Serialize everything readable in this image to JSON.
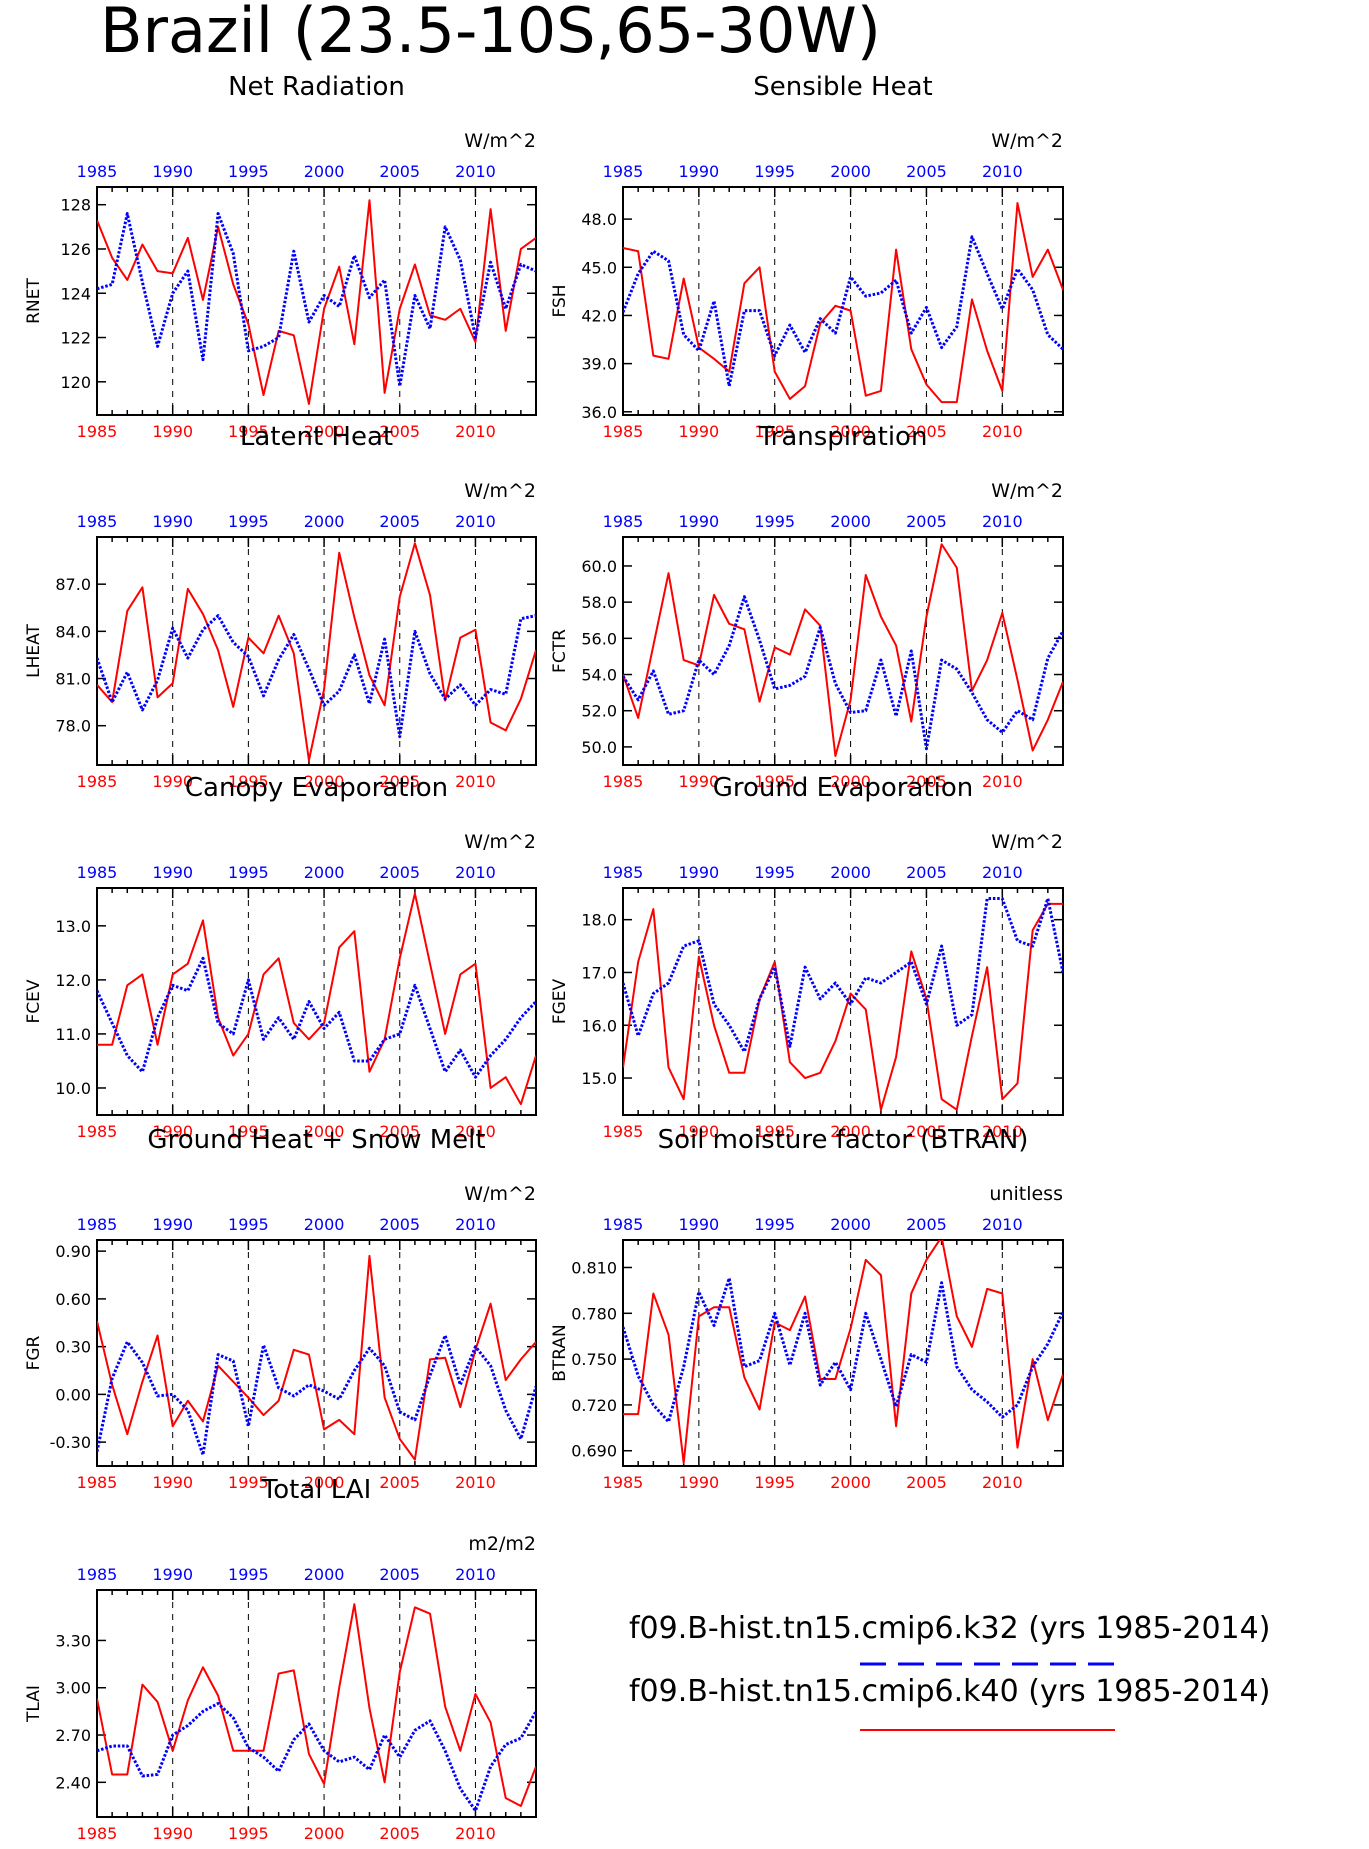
{
  "title": "Brazil (23.5-10S,65-30W)",
  "colors": {
    "k32": "#0000ff",
    "k40": "#ff0000",
    "axis": "#000000"
  },
  "legend": [
    {
      "label": "f09.B-hist.tn15.cmip6.k32 (yrs 1985-2014)",
      "color": "#0000ff",
      "style": "dashed-dotted"
    },
    {
      "label": "f09.B-hist.tn15.cmip6.k40 (yrs 1985-2014)",
      "color": "#ff0000",
      "style": "solid"
    }
  ],
  "chart_data": [
    {
      "type": "line",
      "title": "Net Radiation",
      "ylabel": "RNET",
      "units": "W/m^2",
      "xlim": [
        1985,
        2014
      ],
      "ylim": [
        118.5,
        128.8
      ],
      "yticks": [
        "120",
        "122",
        "124",
        "126",
        "128"
      ],
      "x_ticks_top": [
        "1985",
        "1990",
        "1995",
        "2000",
        "2005",
        "2010"
      ],
      "x_ticks_bottom": [
        "1985",
        "1990",
        "1995",
        "2000",
        "2005",
        "2010"
      ],
      "series": [
        {
          "name": "f09.B-hist.tn15.cmip6.k32",
          "values": [
            124.2,
            124.4,
            127.6,
            124.5,
            121.6,
            124.0,
            125.0,
            121.0,
            127.6,
            125.8,
            121.4,
            121.6,
            122.0,
            125.9,
            122.7,
            123.9,
            123.4,
            125.7,
            123.8,
            124.6,
            119.8,
            123.9,
            122.4,
            127.0,
            125.5,
            122.0,
            125.4,
            123.3,
            125.3,
            125.0
          ]
        },
        {
          "name": "f09.B-hist.tn15.cmip6.k40",
          "values": [
            127.3,
            125.6,
            124.6,
            126.2,
            125.0,
            124.9,
            126.5,
            123.7,
            127.0,
            124.4,
            122.6,
            119.4,
            122.3,
            122.1,
            119.0,
            123.3,
            125.2,
            121.7,
            128.2,
            119.5,
            123.3,
            125.3,
            123.0,
            122.8,
            123.3,
            121.8,
            127.8,
            122.3,
            126.0,
            126.5
          ]
        }
      ]
    },
    {
      "type": "line",
      "title": "Sensible Heat",
      "ylabel": "FSH",
      "units": "W/m^2",
      "xlim": [
        1985,
        2014
      ],
      "ylim": [
        35.8,
        50.0
      ],
      "yticks": [
        "36.0",
        "39.0",
        "42.0",
        "45.0",
        "48.0"
      ],
      "x_ticks_top": [
        "1985",
        "1990",
        "1995",
        "2000",
        "2005",
        "2010"
      ],
      "x_ticks_bottom": [
        "1985",
        "1990",
        "1995",
        "2000",
        "2005",
        "2010"
      ],
      "series": [
        {
          "name": "f09.B-hist.tn15.cmip6.k32",
          "values": [
            42.2,
            44.6,
            46.0,
            45.4,
            40.8,
            39.8,
            42.9,
            37.6,
            42.3,
            42.3,
            39.5,
            41.4,
            39.7,
            41.8,
            40.9,
            44.4,
            43.2,
            43.4,
            44.2,
            40.9,
            42.5,
            40.0,
            41.3,
            46.9,
            44.6,
            42.4,
            44.9,
            43.6,
            40.8,
            39.9
          ]
        },
        {
          "name": "f09.B-hist.tn15.cmip6.k40",
          "values": [
            46.2,
            46.0,
            39.5,
            39.3,
            44.3,
            40.0,
            39.3,
            38.5,
            44.0,
            45.0,
            38.5,
            36.8,
            37.6,
            41.5,
            42.6,
            42.3,
            37.0,
            37.3,
            46.1,
            39.9,
            37.7,
            36.6,
            36.6,
            43.0,
            39.8,
            37.3,
            49.0,
            44.4,
            46.1,
            43.6
          ]
        }
      ]
    },
    {
      "type": "line",
      "title": "Latent Heat",
      "ylabel": "LHEAT",
      "units": "W/m^2",
      "xlim": [
        1985,
        2014
      ],
      "ylim": [
        75.5,
        90.0
      ],
      "yticks": [
        "78.0",
        "81.0",
        "84.0",
        "87.0"
      ],
      "x_ticks_top": [
        "1985",
        "1990",
        "1995",
        "2000",
        "2005",
        "2010"
      ],
      "x_ticks_bottom": [
        "1985",
        "1990",
        "1995",
        "2000",
        "2005",
        "2010"
      ],
      "series": [
        {
          "name": "f09.B-hist.tn15.cmip6.k32",
          "values": [
            82.3,
            79.5,
            81.4,
            79.0,
            80.9,
            84.2,
            82.3,
            84.1,
            85.0,
            83.3,
            82.4,
            79.9,
            82.2,
            83.8,
            81.6,
            79.3,
            80.2,
            82.5,
            79.4,
            83.5,
            77.3,
            84.0,
            81.3,
            79.7,
            80.6,
            79.3,
            80.3,
            80.0,
            84.8,
            85.0
          ]
        },
        {
          "name": "f09.B-hist.tn15.cmip6.k40",
          "values": [
            80.6,
            79.5,
            85.3,
            86.8,
            79.8,
            80.7,
            86.7,
            85.1,
            82.8,
            79.2,
            83.6,
            82.6,
            85.0,
            82.6,
            75.8,
            80.3,
            89.0,
            84.9,
            81.2,
            79.3,
            86.2,
            89.6,
            86.3,
            79.6,
            83.6,
            84.1,
            78.2,
            77.7,
            79.7,
            82.8
          ]
        }
      ]
    },
    {
      "type": "line",
      "title": "Transpiration",
      "ylabel": "FCTR",
      "units": "W/m^2",
      "xlim": [
        1985,
        2014
      ],
      "ylim": [
        49.0,
        61.6
      ],
      "yticks": [
        "50.0",
        "52.0",
        "54.0",
        "56.0",
        "58.0",
        "60.0"
      ],
      "x_ticks_top": [
        "1985",
        "1990",
        "1995",
        "2000",
        "2005",
        "2010"
      ],
      "x_ticks_bottom": [
        "1985",
        "1990",
        "1995",
        "2000",
        "2005",
        "2010"
      ],
      "series": [
        {
          "name": "f09.B-hist.tn15.cmip6.k32",
          "values": [
            53.9,
            52.6,
            54.2,
            51.8,
            52.0,
            54.8,
            54.0,
            55.6,
            58.3,
            55.9,
            53.2,
            53.4,
            53.9,
            56.6,
            53.5,
            51.9,
            52.0,
            54.8,
            51.7,
            55.3,
            49.9,
            54.8,
            54.3,
            53.0,
            51.5,
            50.8,
            52.0,
            51.5,
            54.9,
            56.4
          ]
        },
        {
          "name": "f09.B-hist.tn15.cmip6.k40",
          "values": [
            54.0,
            51.6,
            55.6,
            59.6,
            54.8,
            54.5,
            58.4,
            56.8,
            56.5,
            52.5,
            55.5,
            55.1,
            57.6,
            56.7,
            49.5,
            52.6,
            59.5,
            57.2,
            55.6,
            51.4,
            57.2,
            61.2,
            59.9,
            53.1,
            54.8,
            57.4,
            53.7,
            49.8,
            51.5,
            53.6
          ]
        }
      ]
    },
    {
      "type": "line",
      "title": "Canopy Evaporation",
      "ylabel": "FCEV",
      "units": "W/m^2",
      "xlim": [
        1985,
        2014
      ],
      "ylim": [
        9.5,
        13.7
      ],
      "yticks": [
        "10.0",
        "11.0",
        "12.0",
        "13.0"
      ],
      "x_ticks_top": [
        "1985",
        "1990",
        "1995",
        "2000",
        "2005",
        "2010"
      ],
      "x_ticks_bottom": [
        "1985",
        "1990",
        "1995",
        "2000",
        "2005",
        "2010"
      ],
      "series": [
        {
          "name": "f09.B-hist.tn15.cmip6.k32",
          "values": [
            11.8,
            11.2,
            10.6,
            10.3,
            11.3,
            11.9,
            11.8,
            12.4,
            11.2,
            11.0,
            12.0,
            10.9,
            11.3,
            10.9,
            11.6,
            11.1,
            11.4,
            10.5,
            10.5,
            10.9,
            11.0,
            11.9,
            11.1,
            10.3,
            10.7,
            10.2,
            10.6,
            10.9,
            11.3,
            11.6
          ]
        },
        {
          "name": "f09.B-hist.tn15.cmip6.k40",
          "values": [
            10.8,
            10.8,
            11.9,
            12.1,
            10.8,
            12.1,
            12.3,
            13.1,
            11.3,
            10.6,
            11.0,
            12.1,
            12.4,
            11.2,
            10.9,
            11.2,
            12.6,
            12.9,
            10.3,
            10.9,
            12.4,
            13.6,
            12.3,
            11.0,
            12.1,
            12.3,
            10.0,
            10.2,
            9.7,
            10.6
          ]
        }
      ]
    },
    {
      "type": "line",
      "title": "Ground Evaporation",
      "ylabel": "FGEV",
      "units": "W/m^2",
      "xlim": [
        1985,
        2014
      ],
      "ylim": [
        14.3,
        18.6
      ],
      "yticks": [
        "15.0",
        "16.0",
        "17.0",
        "18.0"
      ],
      "x_ticks_top": [
        "1985",
        "1990",
        "1995",
        "2000",
        "2005",
        "2010"
      ],
      "x_ticks_bottom": [
        "1985",
        "1990",
        "1995",
        "2000",
        "2005",
        "2010"
      ],
      "series": [
        {
          "name": "f09.B-hist.tn15.cmip6.k32",
          "values": [
            16.8,
            15.8,
            16.6,
            16.8,
            17.5,
            17.6,
            16.4,
            16.0,
            15.5,
            16.5,
            17.1,
            15.6,
            17.1,
            16.5,
            16.8,
            16.4,
            16.9,
            16.8,
            17.0,
            17.2,
            16.4,
            17.5,
            16.0,
            16.2,
            18.4,
            18.4,
            17.6,
            17.5,
            18.4,
            17.0
          ]
        },
        {
          "name": "f09.B-hist.tn15.cmip6.k40",
          "values": [
            15.2,
            17.2,
            18.2,
            15.2,
            14.6,
            17.3,
            16.0,
            15.1,
            15.1,
            16.5,
            17.2,
            15.3,
            15.0,
            15.1,
            15.7,
            16.6,
            16.3,
            14.4,
            15.4,
            17.4,
            16.5,
            14.6,
            14.4,
            15.8,
            17.1,
            14.6,
            14.9,
            17.8,
            18.3,
            18.3
          ]
        }
      ]
    },
    {
      "type": "line",
      "title": "Ground Heat + Snow Melt",
      "ylabel": "FGR",
      "units": "W/m^2",
      "xlim": [
        1985,
        2014
      ],
      "ylim": [
        -0.45,
        0.97
      ],
      "yticks": [
        "-0.30",
        "0.00",
        "0.30",
        "0.60",
        "0.90"
      ],
      "x_ticks_top": [
        "1985",
        "1990",
        "1995",
        "2000",
        "2005",
        "2010"
      ],
      "x_ticks_bottom": [
        "1985",
        "1990",
        "1995",
        "2000",
        "2005",
        "2010"
      ],
      "series": [
        {
          "name": "f09.B-hist.tn15.cmip6.k32",
          "values": [
            -0.36,
            0.1,
            0.33,
            0.2,
            -0.01,
            0.0,
            -0.1,
            -0.38,
            0.25,
            0.21,
            -0.2,
            0.31,
            0.04,
            -0.01,
            0.06,
            0.02,
            -0.03,
            0.15,
            0.29,
            0.18,
            -0.11,
            -0.16,
            0.12,
            0.37,
            0.06,
            0.3,
            0.18,
            -0.1,
            -0.28,
            0.05
          ]
        },
        {
          "name": "f09.B-hist.tn15.cmip6.k40",
          "values": [
            0.46,
            0.06,
            -0.25,
            0.08,
            0.37,
            -0.2,
            -0.04,
            -0.17,
            0.18,
            0.08,
            -0.02,
            -0.13,
            -0.04,
            0.28,
            0.25,
            -0.22,
            -0.16,
            -0.25,
            0.87,
            -0.02,
            -0.28,
            -0.41,
            0.22,
            0.23,
            -0.08,
            0.28,
            0.57,
            0.09,
            0.22,
            0.33
          ]
        }
      ]
    },
    {
      "type": "line",
      "title": "Soil moisture factor (BTRAN)",
      "ylabel": "BTRAN",
      "units": "unitless",
      "xlim": [
        1985,
        2014
      ],
      "ylim": [
        0.68,
        0.828
      ],
      "yticks": [
        "0.690",
        "0.720",
        "0.750",
        "0.780",
        "0.810"
      ],
      "x_ticks_top": [
        "1985",
        "1990",
        "1995",
        "2000",
        "2005",
        "2010"
      ],
      "x_ticks_bottom": [
        "1985",
        "1990",
        "1995",
        "2000",
        "2005",
        "2010"
      ],
      "series": [
        {
          "name": "f09.B-hist.tn15.cmip6.k32",
          "values": [
            0.771,
            0.739,
            0.72,
            0.709,
            0.745,
            0.794,
            0.772,
            0.803,
            0.745,
            0.749,
            0.78,
            0.746,
            0.78,
            0.733,
            0.748,
            0.73,
            0.78,
            0.75,
            0.719,
            0.753,
            0.748,
            0.8,
            0.745,
            0.73,
            0.722,
            0.712,
            0.72,
            0.745,
            0.76,
            0.781
          ]
        },
        {
          "name": "f09.B-hist.tn15.cmip6.k40",
          "values": [
            0.714,
            0.714,
            0.793,
            0.766,
            0.682,
            0.778,
            0.784,
            0.784,
            0.738,
            0.717,
            0.774,
            0.769,
            0.791,
            0.737,
            0.737,
            0.77,
            0.815,
            0.805,
            0.706,
            0.793,
            0.815,
            0.83,
            0.778,
            0.758,
            0.796,
            0.793,
            0.692,
            0.75,
            0.71,
            0.74
          ]
        }
      ]
    },
    {
      "type": "line",
      "title": "Total LAI",
      "ylabel": "TLAI",
      "units": "m2/m2",
      "xlim": [
        1985,
        2014
      ],
      "ylim": [
        2.18,
        3.62
      ],
      "yticks": [
        "2.40",
        "2.70",
        "3.00",
        "3.30"
      ],
      "x_ticks_top": [
        "1985",
        "1990",
        "1995",
        "2000",
        "2005",
        "2010"
      ],
      "x_ticks_bottom": [
        "1985",
        "1990",
        "1995",
        "2000",
        "2005",
        "2010"
      ],
      "series": [
        {
          "name": "f09.B-hist.tn15.cmip6.k32",
          "values": [
            2.6,
            2.63,
            2.63,
            2.44,
            2.45,
            2.7,
            2.76,
            2.85,
            2.9,
            2.81,
            2.62,
            2.56,
            2.47,
            2.67,
            2.77,
            2.6,
            2.53,
            2.56,
            2.48,
            2.7,
            2.56,
            2.73,
            2.79,
            2.6,
            2.36,
            2.22,
            2.5,
            2.64,
            2.68,
            2.85
          ]
        },
        {
          "name": "f09.B-hist.tn15.cmip6.k40",
          "values": [
            2.93,
            2.45,
            2.45,
            3.02,
            2.91,
            2.6,
            2.92,
            3.13,
            2.95,
            2.6,
            2.6,
            2.6,
            3.09,
            3.11,
            2.58,
            2.39,
            3.0,
            3.53,
            2.87,
            2.4,
            3.1,
            3.51,
            3.47,
            2.88,
            2.6,
            2.96,
            2.78,
            2.3,
            2.25,
            2.5
          ]
        }
      ]
    }
  ]
}
